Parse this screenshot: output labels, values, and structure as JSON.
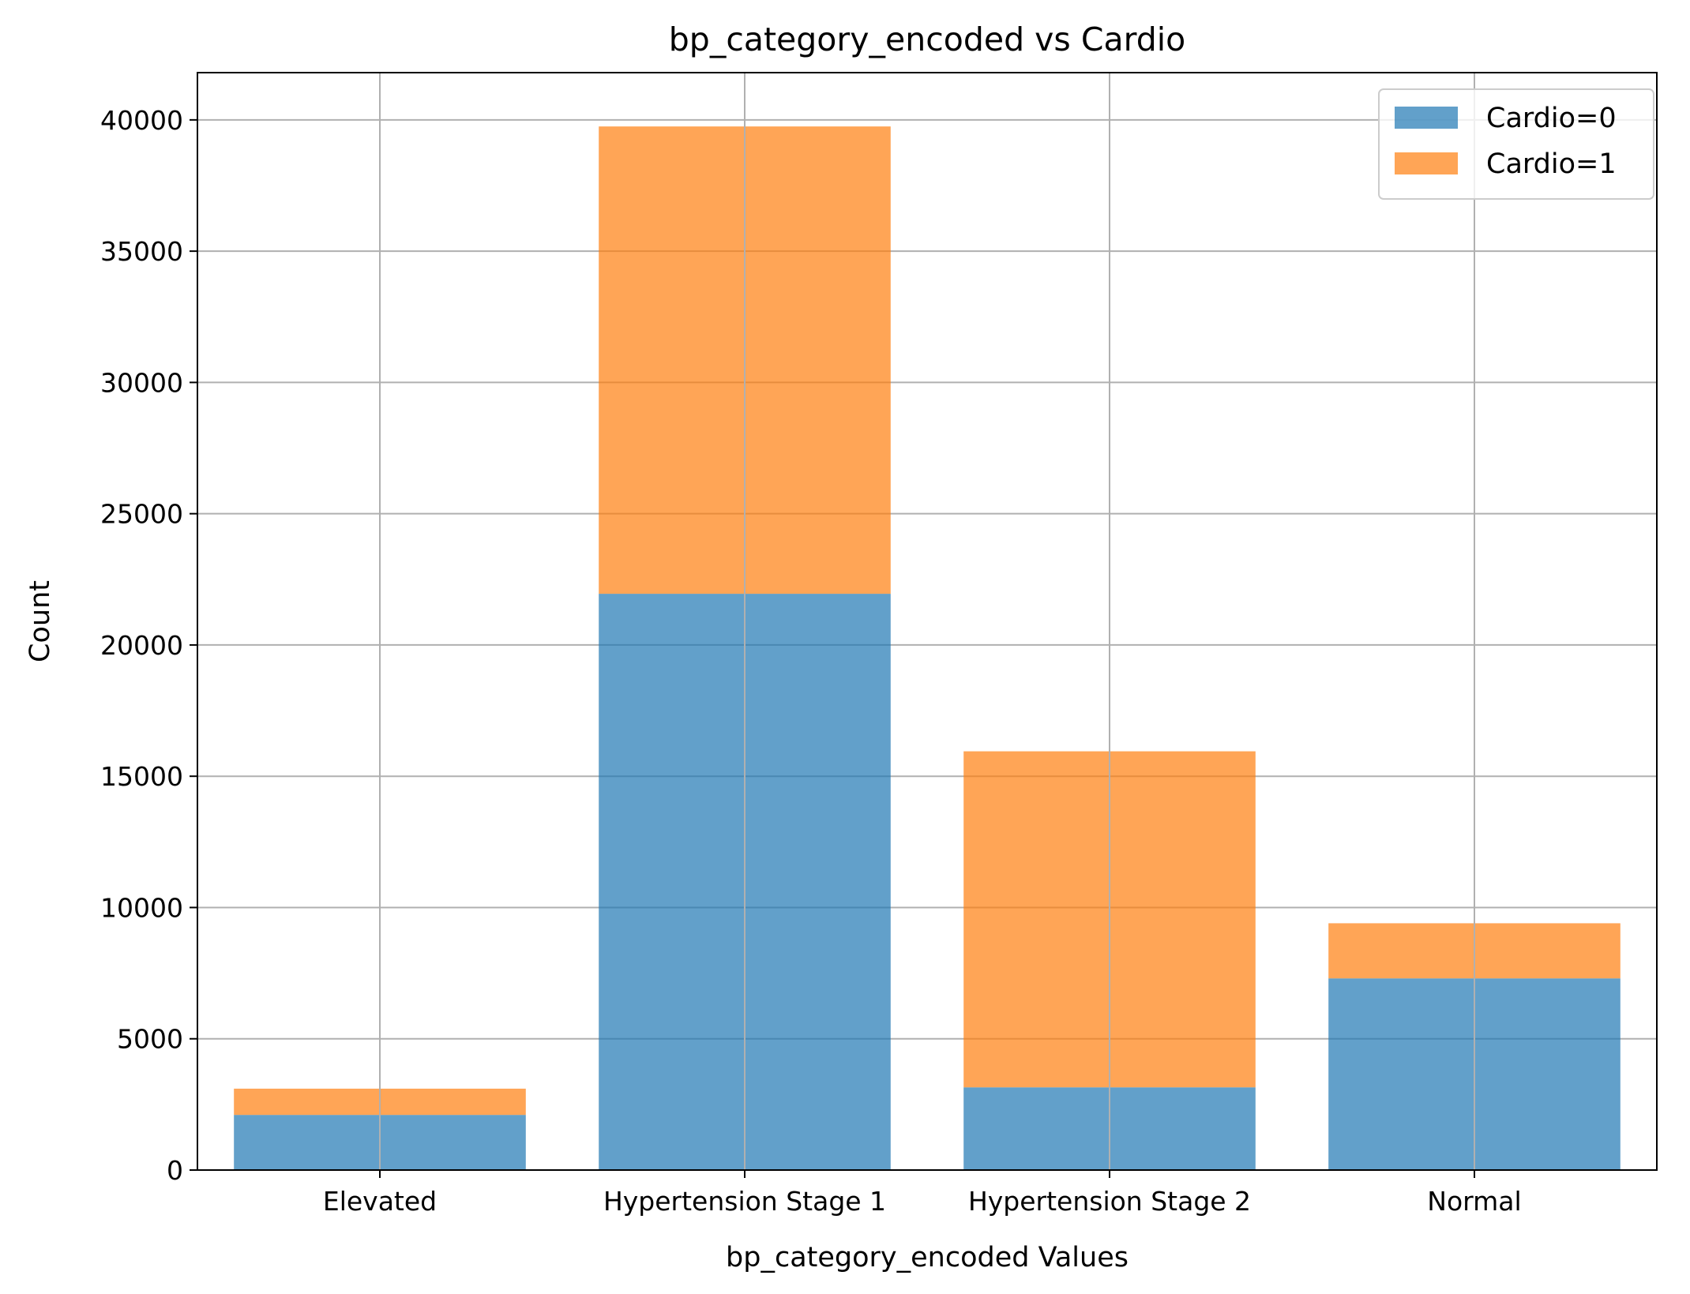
{
  "chart_data": {
    "type": "bar",
    "stacked": true,
    "title": "bp_category_encoded vs Cardio",
    "xlabel": "bp_category_encoded Values",
    "ylabel": "Count",
    "categories": [
      "Elevated",
      "Hypertension Stage 1",
      "Hypertension Stage 2",
      "Normal"
    ],
    "series": [
      {
        "name": "Cardio=0",
        "color": "#1f77b4",
        "values": [
          2100,
          21950,
          3150,
          7300
        ]
      },
      {
        "name": "Cardio=1",
        "color": "#ff7f0e",
        "values": [
          1000,
          17800,
          12800,
          2100
        ]
      }
    ],
    "ylim": [
      0,
      41800
    ],
    "yticks": [
      0,
      5000,
      10000,
      15000,
      20000,
      25000,
      30000,
      35000,
      40000
    ],
    "grid": true,
    "legend_position": "top-right"
  }
}
